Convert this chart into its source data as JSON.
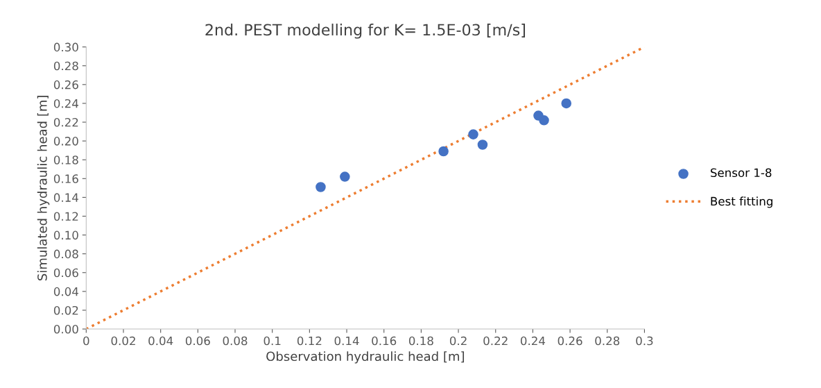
{
  "chart_data": {
    "type": "scatter",
    "title": "2nd. PEST modelling for K= 1.5E-03 [m/s]",
    "xlabel": "Observation hydraulic head [m]",
    "ylabel": "Simulated hydraulic head [m]",
    "series": [
      {
        "name": "Sensor 1-8",
        "color": "#4472c4",
        "marker": "circle",
        "x": [
          0.126,
          0.139,
          0.192,
          0.208,
          0.213,
          0.243,
          0.246,
          0.258
        ],
        "values": [
          0.151,
          0.162,
          0.189,
          0.207,
          0.196,
          0.227,
          0.222,
          0.24
        ]
      },
      {
        "name": "Best fitting",
        "type": "line",
        "color": "#ed7d31",
        "marker": "none",
        "line_style": "dotted",
        "x": [
          0,
          0.3
        ],
        "values": [
          0,
          0.3
        ]
      }
    ],
    "xlim": [
      0,
      0.3
    ],
    "ylim": [
      0,
      0.3
    ],
    "xticks": [
      0,
      0.02,
      0.04,
      0.06,
      0.08,
      0.1,
      0.12,
      0.14,
      0.16,
      0.18,
      0.2,
      0.22,
      0.24,
      0.26,
      0.28,
      0.3
    ],
    "yticks": [
      {
        "value": 0,
        "label": "0.00"
      },
      {
        "value": 0.02,
        "label": "0.02"
      },
      {
        "value": 0.04,
        "label": "0.04"
      },
      {
        "value": 0.06,
        "label": "0.06"
      },
      {
        "value": 0.08,
        "label": "0.08"
      },
      {
        "value": 0.1,
        "label": "0.10"
      },
      {
        "value": 0.12,
        "label": "0.12"
      },
      {
        "value": 0.14,
        "label": "0.14"
      },
      {
        "value": 0.16,
        "label": "0.16"
      },
      {
        "value": 0.18,
        "label": "0.18"
      },
      {
        "value": 0.2,
        "label": "0.20"
      },
      {
        "value": 0.22,
        "label": "0.22"
      },
      {
        "value": 0.24,
        "label": "0.24"
      },
      {
        "value": 0.26,
        "label": "0.26"
      },
      {
        "value": 0.28,
        "label": "0.28"
      },
      {
        "value": 0.3,
        "label": "0.30"
      }
    ],
    "grid": false,
    "legend": "right"
  }
}
